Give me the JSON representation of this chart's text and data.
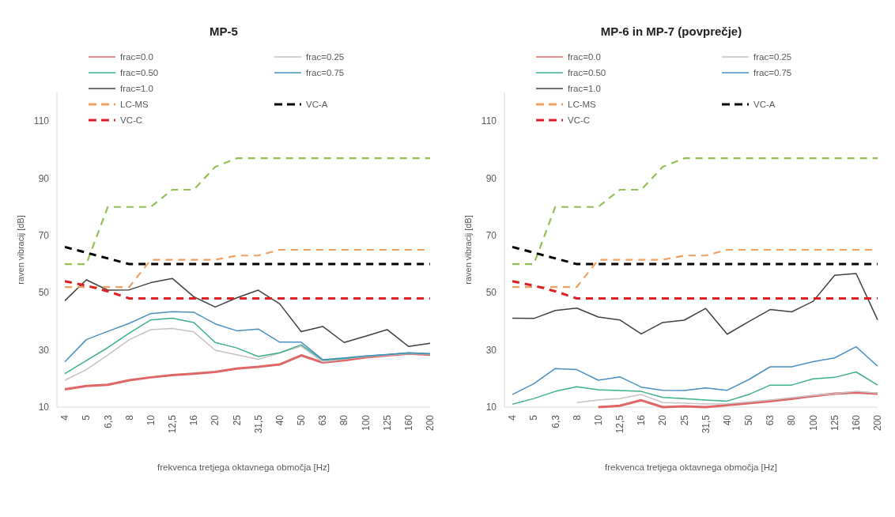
{
  "chart_data": [
    {
      "type": "line",
      "title": "MP-5",
      "xlabel": "frekvenca tretjega oktavnega območja [Hz]",
      "ylabel": "raven vibracij [dB]",
      "categories": [
        "4",
        "5",
        "6,3",
        "8",
        "10",
        "12,5",
        "16",
        "20",
        "25",
        "31,5",
        "40",
        "50",
        "63",
        "80",
        "100",
        "125",
        "160",
        "200"
      ],
      "ylim": [
        10,
        120
      ],
      "yticks": [
        10,
        30,
        50,
        70,
        90,
        110
      ],
      "grid": false,
      "legend": "top",
      "marker": "none",
      "series": [
        {
          "name": "frac=0.0",
          "color": "#e06666",
          "line_style": "solid",
          "values": [
            16.2,
            17.4,
            17.8,
            19.4,
            20.4,
            21.2,
            21.7,
            22.3,
            23.5,
            24.1,
            24.9,
            28.1,
            25.6,
            26.4,
            27.4,
            28.1,
            28.7,
            28.3
          ]
        },
        {
          "name": "frac=0.25",
          "color": "#c8c0c4",
          "line_style": "solid",
          "values": [
            19.4,
            23.1,
            28.2,
            33.6,
            37.1,
            37.5,
            36.3,
            29.9,
            28.3,
            26.7,
            28.9,
            31.3,
            25.8,
            26.8,
            27.7,
            28.2,
            28.7,
            28.5
          ]
        },
        {
          "name": "frac=0.50",
          "color": "#3cb08a",
          "line_style": "solid",
          "values": [
            21.7,
            26.3,
            30.8,
            35.9,
            40.5,
            41.1,
            39.6,
            32.6,
            30.7,
            27.7,
            29,
            31.8,
            26.4,
            27,
            27.8,
            28.4,
            28.9,
            28.6
          ]
        },
        {
          "name": "frac=0.75",
          "color": "#4a8fc0",
          "line_style": "solid",
          "values": [
            25.8,
            33.6,
            36.5,
            39.3,
            42.7,
            43.4,
            43.2,
            39.1,
            36.7,
            37.3,
            32.7,
            32.7,
            26.6,
            27.2,
            27.9,
            28.4,
            29,
            28.7
          ]
        },
        {
          "name": "frac=1.0",
          "color": "#404040",
          "line_style": "solid",
          "values": [
            47.2,
            54.5,
            50.9,
            51,
            53.5,
            55,
            48.6,
            45,
            48.2,
            50.9,
            46.1,
            36.4,
            38.2,
            32.6,
            34.8,
            37.1,
            31.2,
            32.3
          ]
        },
        {
          "color": "#92c050",
          "line_style": "dashed",
          "values": [
            60,
            60,
            80,
            80,
            80,
            86,
            86,
            94,
            97,
            97,
            97,
            97,
            97,
            97,
            97,
            97,
            97,
            97
          ]
        },
        {
          "name": "LC-MS",
          "color": "#f0a060",
          "line_style": "dashed",
          "values": [
            52,
            52,
            52,
            52,
            61.5,
            61.5,
            61.5,
            61.5,
            63,
            63,
            65,
            65,
            65,
            65,
            65,
            65,
            65,
            65
          ]
        },
        {
          "name": "VC-A",
          "color": "#000000",
          "line_style": "dashed",
          "values": [
            66,
            64,
            62,
            60,
            60,
            60,
            60,
            60,
            60,
            60,
            60,
            60,
            60,
            60,
            60,
            60,
            60,
            60
          ]
        },
        {
          "name": "VC-C",
          "color": "#e02020",
          "line_style": "dashed",
          "values": [
            54,
            52.5,
            50.5,
            48,
            48,
            48,
            48,
            48,
            48,
            48,
            48,
            48,
            48,
            48,
            48,
            48,
            48,
            48
          ]
        }
      ]
    },
    {
      "type": "line",
      "title": "MP-6 in MP-7 (povprečje)",
      "xlabel": "frekvenca tretjega oktavnega območja [Hz]",
      "ylabel": "raven vibracij [dB]",
      "categories": [
        "4",
        "5",
        "6,3",
        "8",
        "10",
        "12,5",
        "16",
        "20",
        "25",
        "31,5",
        "40",
        "50",
        "63",
        "80",
        "100",
        "125",
        "160",
        "200"
      ],
      "ylim": [
        10,
        120
      ],
      "yticks": [
        10,
        30,
        50,
        70,
        90,
        110
      ],
      "grid": false,
      "legend": "top",
      "marker": "none",
      "series": [
        {
          "name": "frac=0.0",
          "color": "#e06666",
          "line_style": "solid",
          "values": [
            null,
            null,
            null,
            null,
            10,
            10.5,
            12.4,
            10,
            10.3,
            10,
            10.7,
            11.4,
            12.1,
            12.9,
            13.9,
            14.7,
            15.1,
            14.7
          ]
        },
        {
          "name": "frac=0.25",
          "color": "#c8c0c4",
          "line_style": "solid",
          "values": [
            null,
            null,
            null,
            11.6,
            12.5,
            13,
            14.4,
            11.6,
            11.4,
            11.1,
            11.2,
            11.8,
            12.5,
            13.3,
            14.1,
            14.7,
            15.5,
            14.9
          ]
        },
        {
          "name": "frac=0.50",
          "color": "#3cb08a",
          "line_style": "solid",
          "values": [
            11,
            13,
            15.5,
            17.1,
            16.1,
            15.8,
            15.5,
            13.4,
            13,
            12.5,
            12.1,
            14.4,
            17.7,
            17.7,
            19.9,
            20.4,
            22.3,
            17.7
          ]
        },
        {
          "name": "frac=0.75",
          "color": "#4a8fc0",
          "line_style": "solid",
          "values": [
            14.4,
            18.2,
            23.5,
            23.1,
            19.4,
            20.6,
            17,
            15.9,
            15.8,
            16.7,
            15.9,
            19.6,
            24.1,
            24.1,
            25.9,
            27.2,
            31.1,
            24.3
          ]
        },
        {
          "name": "frac=1.0",
          "color": "#404040",
          "line_style": "solid",
          "values": [
            41.1,
            41,
            43.8,
            44.6,
            41.5,
            40.5,
            35.6,
            39.6,
            40.4,
            44.5,
            35.5,
            39.9,
            44.1,
            43.3,
            47,
            56.1,
            56.7,
            40.5
          ]
        },
        {
          "color": "#92c050",
          "line_style": "dashed",
          "values": [
            60,
            60,
            80,
            80,
            80,
            86,
            86,
            94,
            97,
            97,
            97,
            97,
            97,
            97,
            97,
            97,
            97,
            97
          ]
        },
        {
          "name": "LC-MS",
          "color": "#f0a060",
          "line_style": "dashed",
          "values": [
            52,
            52,
            52,
            52,
            61.5,
            61.5,
            61.5,
            61.5,
            63,
            63,
            65,
            65,
            65,
            65,
            65,
            65,
            65,
            65
          ]
        },
        {
          "name": "VC-A",
          "color": "#000000",
          "line_style": "dashed",
          "values": [
            66,
            64,
            62,
            60,
            60,
            60,
            60,
            60,
            60,
            60,
            60,
            60,
            60,
            60,
            60,
            60,
            60,
            60
          ]
        },
        {
          "name": "VC-C",
          "color": "#e02020",
          "line_style": "dashed",
          "values": [
            54,
            52.5,
            50.5,
            48,
            48,
            48,
            48,
            48,
            48,
            48,
            48,
            48,
            48,
            48,
            48,
            48,
            48,
            48
          ]
        }
      ]
    }
  ]
}
